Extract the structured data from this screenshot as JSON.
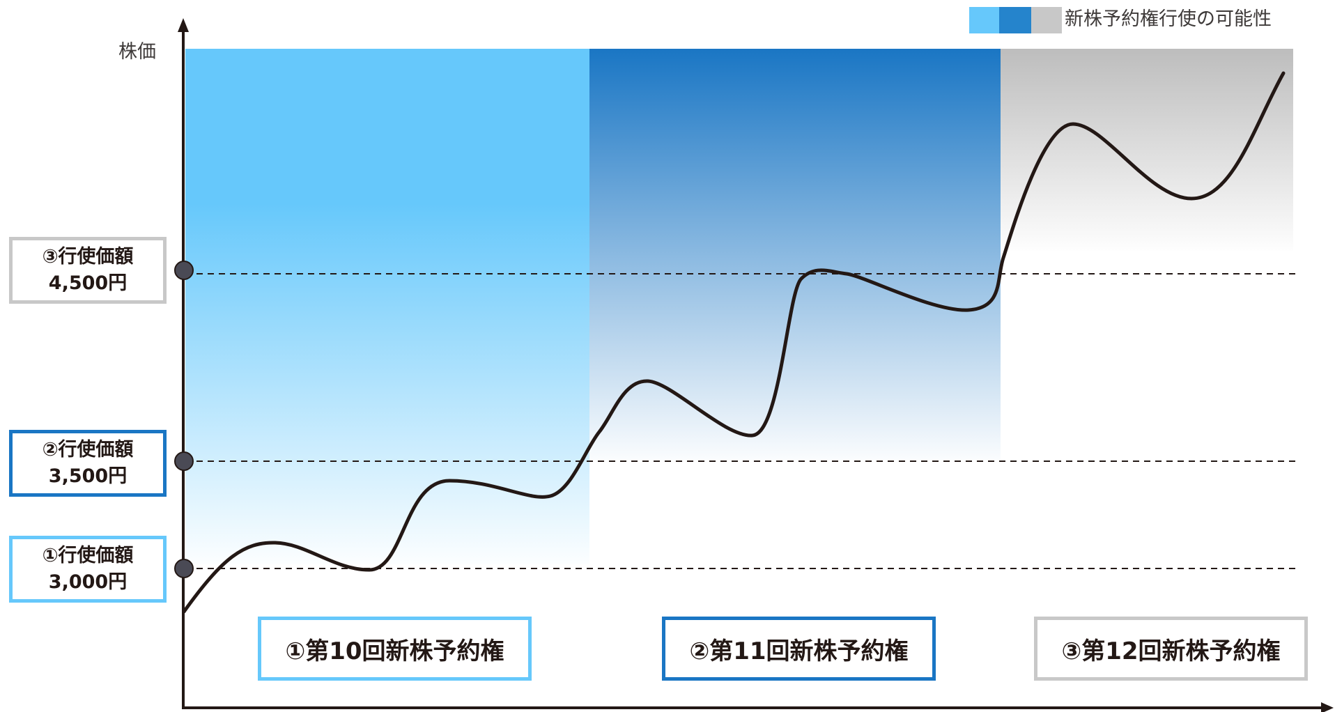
{
  "axis": {
    "y_label": "株価"
  },
  "legend": {
    "label": "新株予約権行使の可能性",
    "swatches": [
      "#66c8fb",
      "#2584cc",
      "#c8c8c8"
    ]
  },
  "colors": {
    "light_blue": "#66c8fb",
    "mid_blue": "#1a76c4",
    "gray": "#c8c8c8",
    "line": "#231815"
  },
  "exercise_prices": [
    {
      "label": "①行使価額",
      "value": "3,000円",
      "price": 3000,
      "color": "#66c8fb"
    },
    {
      "label": "②行使価額",
      "value": "3,500円",
      "price": 3500,
      "color": "#1a76c4"
    },
    {
      "label": "③行使価額",
      "value": "4,500円",
      "price": 4500,
      "color": "#c8c8c8"
    }
  ],
  "series": [
    {
      "label": "①第10回新株予約権",
      "color": "#66c8fb"
    },
    {
      "label": "②第11回新株予約権",
      "color": "#1a76c4"
    },
    {
      "label": "③第12回新株予約権",
      "color": "#c8c8c8"
    }
  ]
}
